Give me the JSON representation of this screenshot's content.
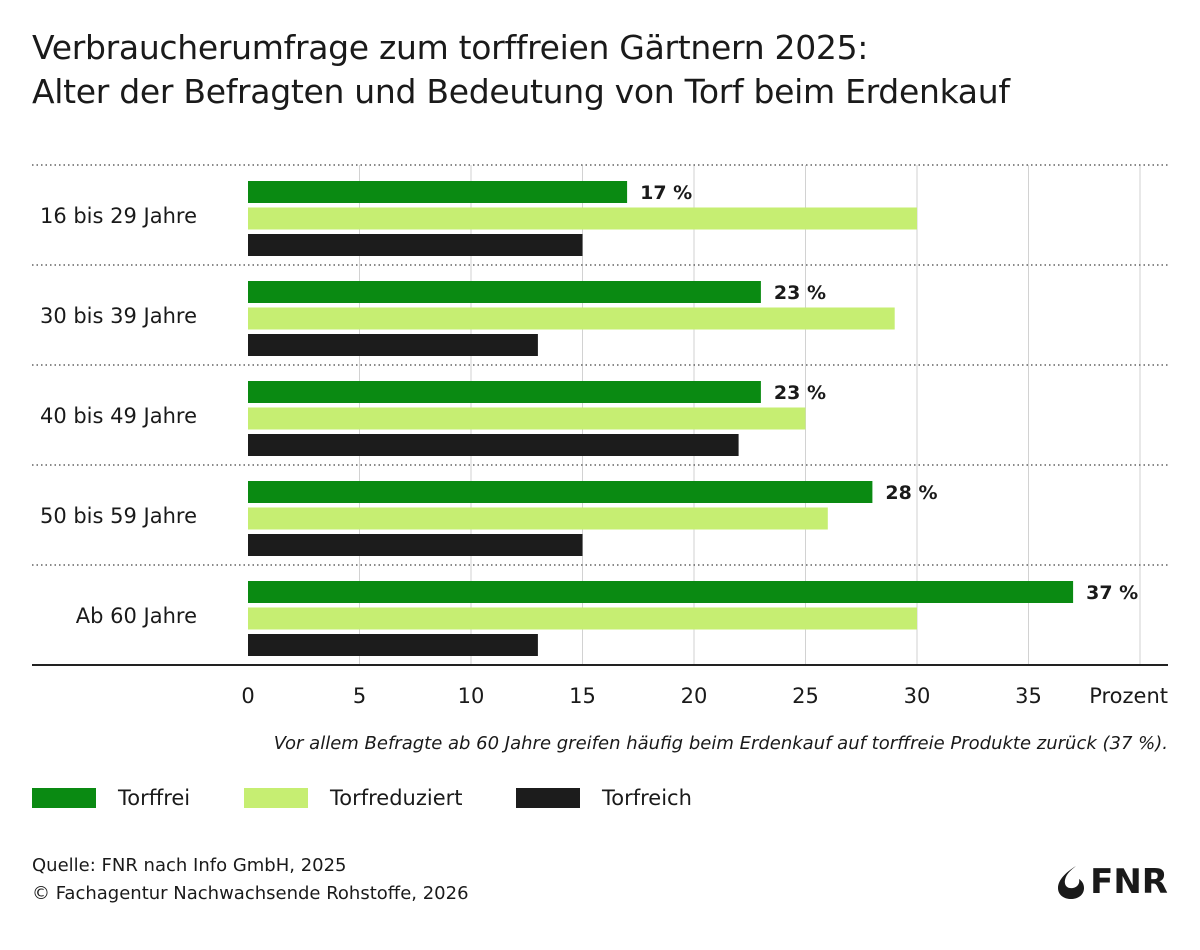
{
  "title": {
    "line1": "Verbraucherumfrage zum torffreien Gärtnern 2025:",
    "line2": "Alter der Befragten und Bedeutung von Torf beim Erdenkauf"
  },
  "chart_data": {
    "type": "bar",
    "orientation": "horizontal",
    "categories": [
      "16 bis 29 Jahre",
      "30 bis 39 Jahre",
      "40 bis 49 Jahre",
      "50 bis 59 Jahre",
      "Ab 60 Jahre"
    ],
    "series": [
      {
        "name": "Torffrei",
        "color": "#0a8a12",
        "values": [
          17,
          23,
          23,
          28,
          37
        ],
        "labels": [
          "17 %",
          "23 %",
          "23 %",
          "28 %",
          "37 %"
        ]
      },
      {
        "name": "Torfreduziert",
        "color": "#c6ee72",
        "values": [
          30,
          29,
          25,
          26,
          30
        ]
      },
      {
        "name": "Torfreich",
        "color": "#1c1c1c",
        "values": [
          15,
          13,
          22,
          15,
          13
        ]
      }
    ],
    "xticks": [
      "0",
      "5",
      "10",
      "15",
      "20",
      "25",
      "30",
      "35"
    ],
    "xlabel": "Prozent",
    "xlim": [
      0,
      40
    ],
    "grid": true,
    "legend_position": "bottom"
  },
  "note": "Vor allem Befragte ab 60 Jahre greifen häufig beim Erdenkauf auf torffreie Produkte zurück (37 %).",
  "source": {
    "line1": "Quelle: FNR nach Info GmbH, 2025",
    "line2": "© Fachagentur Nachwachsende Rohstoffe, 2026"
  },
  "logo": {
    "text": "FNR",
    "icon": "fnr-flame-icon"
  }
}
